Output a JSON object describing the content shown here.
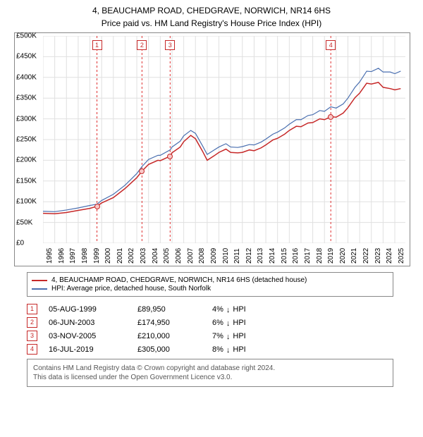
{
  "title": "4, BEAUCHAMP ROAD, CHEDGRAVE, NORWICH, NR14 6HS",
  "subtitle": "Price paid vs. HM Land Registry's House Price Index (HPI)",
  "chart": {
    "type": "line",
    "background_color": "#ffffff",
    "grid_color": "#e0e0e0",
    "border_color": "#888888",
    "x": {
      "min": 1995,
      "max": 2025.9,
      "ticks": [
        1995,
        1996,
        1997,
        1998,
        1999,
        2000,
        2001,
        2002,
        2003,
        2004,
        2005,
        2006,
        2007,
        2008,
        2009,
        2010,
        2011,
        2012,
        2013,
        2014,
        2015,
        2016,
        2017,
        2018,
        2019,
        2020,
        2021,
        2022,
        2023,
        2024,
        2025
      ]
    },
    "y": {
      "min": 0,
      "max": 500000,
      "ticks": [
        0,
        50000,
        100000,
        150000,
        200000,
        250000,
        300000,
        350000,
        400000,
        450000,
        500000
      ],
      "tick_labels": [
        "£0",
        "£50K",
        "£100K",
        "£150K",
        "£200K",
        "£250K",
        "£300K",
        "£350K",
        "£400K",
        "£450K",
        "£500K"
      ]
    },
    "series": [
      {
        "key": "property",
        "label": "4, BEAUCHAMP ROAD, CHEDGRAVE, NORWICH, NR14 6HS (detached house)",
        "color": "#c62828",
        "line_width": 1.5,
        "data": [
          [
            1995,
            72000
          ],
          [
            1996,
            71000
          ],
          [
            1997,
            74000
          ],
          [
            1998,
            79000
          ],
          [
            1999,
            84000
          ],
          [
            1999.6,
            89000
          ],
          [
            2000,
            97000
          ],
          [
            2001,
            110000
          ],
          [
            2002,
            132000
          ],
          [
            2003,
            158000
          ],
          [
            2003.44,
            174000
          ],
          [
            2004,
            190000
          ],
          [
            2004.8,
            200000
          ],
          [
            2005,
            199000
          ],
          [
            2005.84,
            210000
          ],
          [
            2006,
            218000
          ],
          [
            2006.7,
            232000
          ],
          [
            2007,
            245000
          ],
          [
            2007.6,
            260000
          ],
          [
            2008,
            252000
          ],
          [
            2008.6,
            222000
          ],
          [
            2009,
            200000
          ],
          [
            2009.6,
            211000
          ],
          [
            2010,
            219000
          ],
          [
            2010.6,
            227000
          ],
          [
            2011,
            219000
          ],
          [
            2011.6,
            218000
          ],
          [
            2012,
            219000
          ],
          [
            2012.6,
            225000
          ],
          [
            2013,
            223000
          ],
          [
            2013.6,
            230000
          ],
          [
            2014,
            237000
          ],
          [
            2014.6,
            249000
          ],
          [
            2015,
            253000
          ],
          [
            2015.6,
            263000
          ],
          [
            2016,
            272000
          ],
          [
            2016.6,
            282000
          ],
          [
            2017,
            281000
          ],
          [
            2017.6,
            290000
          ],
          [
            2018,
            291000
          ],
          [
            2018.6,
            300000
          ],
          [
            2019,
            298000
          ],
          [
            2019.54,
            305000
          ],
          [
            2020,
            304000
          ],
          [
            2020.6,
            314000
          ],
          [
            2021,
            327000
          ],
          [
            2021.6,
            351000
          ],
          [
            2022,
            362000
          ],
          [
            2022.6,
            386000
          ],
          [
            2023,
            384000
          ],
          [
            2023.6,
            388000
          ],
          [
            2024,
            376000
          ],
          [
            2024.6,
            373000
          ],
          [
            2025,
            370000
          ],
          [
            2025.5,
            373000
          ]
        ]
      },
      {
        "key": "hpi",
        "label": "HPI: Average price, detached house, South Norfolk",
        "color": "#4a6fb0",
        "line_width": 1.2,
        "data": [
          [
            1995,
            77000
          ],
          [
            1996,
            76000
          ],
          [
            1997,
            80000
          ],
          [
            1998,
            85000
          ],
          [
            1999,
            91000
          ],
          [
            1999.6,
            94000
          ],
          [
            2000,
            103000
          ],
          [
            2001,
            118000
          ],
          [
            2002,
            140000
          ],
          [
            2003,
            168000
          ],
          [
            2003.44,
            185000
          ],
          [
            2004,
            202000
          ],
          [
            2004.8,
            212000
          ],
          [
            2005,
            212000
          ],
          [
            2005.84,
            225000
          ],
          [
            2006,
            232000
          ],
          [
            2006.7,
            246000
          ],
          [
            2007,
            259000
          ],
          [
            2007.6,
            272000
          ],
          [
            2008,
            265000
          ],
          [
            2008.6,
            235000
          ],
          [
            2009,
            214000
          ],
          [
            2009.6,
            225000
          ],
          [
            2010,
            232000
          ],
          [
            2010.6,
            240000
          ],
          [
            2011,
            232000
          ],
          [
            2011.6,
            231000
          ],
          [
            2012,
            233000
          ],
          [
            2012.6,
            238000
          ],
          [
            2013,
            237000
          ],
          [
            2013.6,
            244000
          ],
          [
            2014,
            251000
          ],
          [
            2014.6,
            263000
          ],
          [
            2015,
            268000
          ],
          [
            2015.6,
            278000
          ],
          [
            2016,
            287000
          ],
          [
            2016.6,
            298000
          ],
          [
            2017,
            298000
          ],
          [
            2017.6,
            308000
          ],
          [
            2018,
            310000
          ],
          [
            2018.6,
            320000
          ],
          [
            2019,
            318000
          ],
          [
            2019.54,
            329000
          ],
          [
            2020,
            326000
          ],
          [
            2020.6,
            336000
          ],
          [
            2021,
            350000
          ],
          [
            2021.6,
            376000
          ],
          [
            2022,
            389000
          ],
          [
            2022.6,
            415000
          ],
          [
            2023,
            414000
          ],
          [
            2023.6,
            422000
          ],
          [
            2024,
            413000
          ],
          [
            2024.6,
            413000
          ],
          [
            2025,
            409000
          ],
          [
            2025.5,
            415000
          ]
        ]
      }
    ],
    "event_lines": {
      "color": "#e03030",
      "dash": "3,3",
      "positions": [
        1999.6,
        2003.44,
        2005.84,
        2019.54
      ]
    },
    "sale_markers": [
      {
        "n": "1",
        "x": 1999.6,
        "y": 89000
      },
      {
        "n": "2",
        "x": 2003.44,
        "y": 174000
      },
      {
        "n": "3",
        "x": 2005.84,
        "y": 210000
      },
      {
        "n": "4",
        "x": 2019.54,
        "y": 305000
      }
    ]
  },
  "events": [
    {
      "n": "1",
      "date": "05-AUG-1999",
      "price": "£89,950",
      "diff": "4%",
      "dir": "↓",
      "ref": "HPI"
    },
    {
      "n": "2",
      "date": "06-JUN-2003",
      "price": "£174,950",
      "diff": "6%",
      "dir": "↓",
      "ref": "HPI"
    },
    {
      "n": "3",
      "date": "03-NOV-2005",
      "price": "£210,000",
      "diff": "7%",
      "dir": "↓",
      "ref": "HPI"
    },
    {
      "n": "4",
      "date": "16-JUL-2019",
      "price": "£305,000",
      "diff": "8%",
      "dir": "↓",
      "ref": "HPI"
    }
  ],
  "footnote": {
    "line1": "Contains HM Land Registry data © Crown copyright and database right 2024.",
    "line2": "This data is licensed under the Open Government Licence v3.0."
  },
  "fonts": {
    "title": 12,
    "axis": 10,
    "legend": 10,
    "table": 11,
    "footnote": 10
  }
}
